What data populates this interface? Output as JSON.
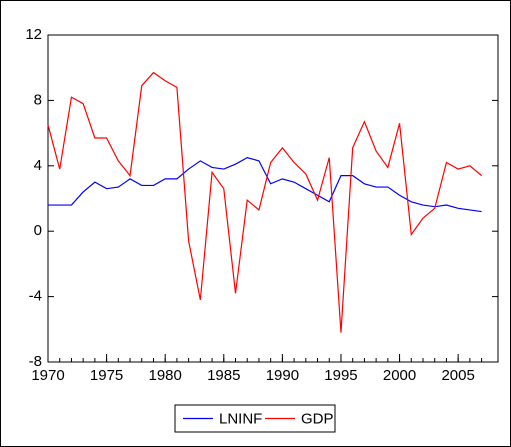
{
  "chart_data": {
    "type": "line",
    "x": [
      1970,
      1971,
      1972,
      1973,
      1974,
      1975,
      1976,
      1977,
      1978,
      1979,
      1980,
      1981,
      1982,
      1983,
      1984,
      1985,
      1986,
      1987,
      1988,
      1989,
      1990,
      1991,
      1992,
      1993,
      1994,
      1995,
      1996,
      1997,
      1998,
      1999,
      2000,
      2001,
      2002,
      2003,
      2004,
      2005,
      2006,
      2007
    ],
    "series": [
      {
        "name": "LNINF",
        "color": "#0000ff",
        "values": [
          1.6,
          1.6,
          1.6,
          2.4,
          3.0,
          2.6,
          2.7,
          3.2,
          2.8,
          2.8,
          3.2,
          3.2,
          3.8,
          4.3,
          3.9,
          3.8,
          4.1,
          4.5,
          4.3,
          2.9,
          3.2,
          3.0,
          2.6,
          2.2,
          1.8,
          3.4,
          3.4,
          2.9,
          2.7,
          2.7,
          2.2,
          1.8,
          1.6,
          1.5,
          1.6,
          1.4,
          1.3,
          1.2
        ]
      },
      {
        "name": "GDP",
        "color": "#ff0000",
        "values": [
          6.5,
          3.8,
          8.2,
          7.8,
          5.7,
          5.7,
          4.3,
          3.4,
          8.9,
          9.7,
          9.2,
          8.8,
          -0.6,
          -4.2,
          3.6,
          2.6,
          -3.8,
          1.9,
          1.3,
          4.2,
          5.1,
          4.2,
          3.5,
          1.9,
          4.5,
          -6.2,
          5.1,
          6.7,
          4.9,
          3.9,
          6.6,
          -0.2,
          0.8,
          1.4,
          4.2,
          3.8,
          4.0,
          3.4
        ]
      }
    ],
    "xlim": [
      1970,
      2008.4
    ],
    "xticks": [
      1970,
      1975,
      1980,
      1985,
      1990,
      1995,
      2000,
      2005
    ],
    "ylim": [
      -8,
      12
    ],
    "yticks": [
      -8,
      -4,
      0,
      4,
      8,
      12
    ],
    "legend": "bottom"
  }
}
